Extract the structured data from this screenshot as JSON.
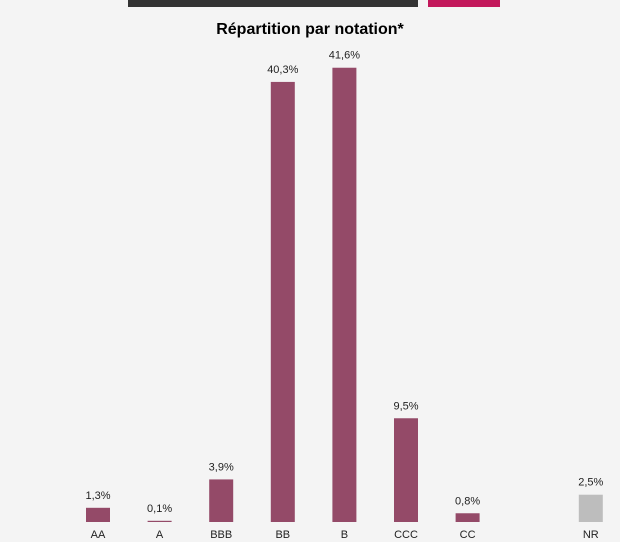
{
  "chart_data": {
    "type": "bar",
    "title": "Répartition par notation*",
    "categories": [
      "AA",
      "A",
      "BBB",
      "BB",
      "B",
      "CCC",
      "CC",
      "",
      "NR"
    ],
    "values": [
      1.3,
      0.1,
      3.9,
      40.3,
      41.6,
      9.5,
      0.8,
      null,
      2.5
    ],
    "value_labels": [
      "1,3%",
      "0,1%",
      "3,9%",
      "40,3%",
      "41,6%",
      "9,5%",
      "0,8%",
      "",
      "2,5%"
    ],
    "bar_colors": [
      "#944a68",
      "#944a68",
      "#944a68",
      "#944a68",
      "#944a68",
      "#944a68",
      "#944a68",
      "",
      "#bdbdbd"
    ],
    "ylim": [
      0,
      45
    ],
    "grid": false,
    "legend": "none",
    "xlabel": "",
    "ylabel": ""
  },
  "colors": {
    "background": "#f4f4f4",
    "bar_primary": "#944a68",
    "bar_nr": "#bdbdbd",
    "top_fragment_pink": "#c2185b"
  }
}
